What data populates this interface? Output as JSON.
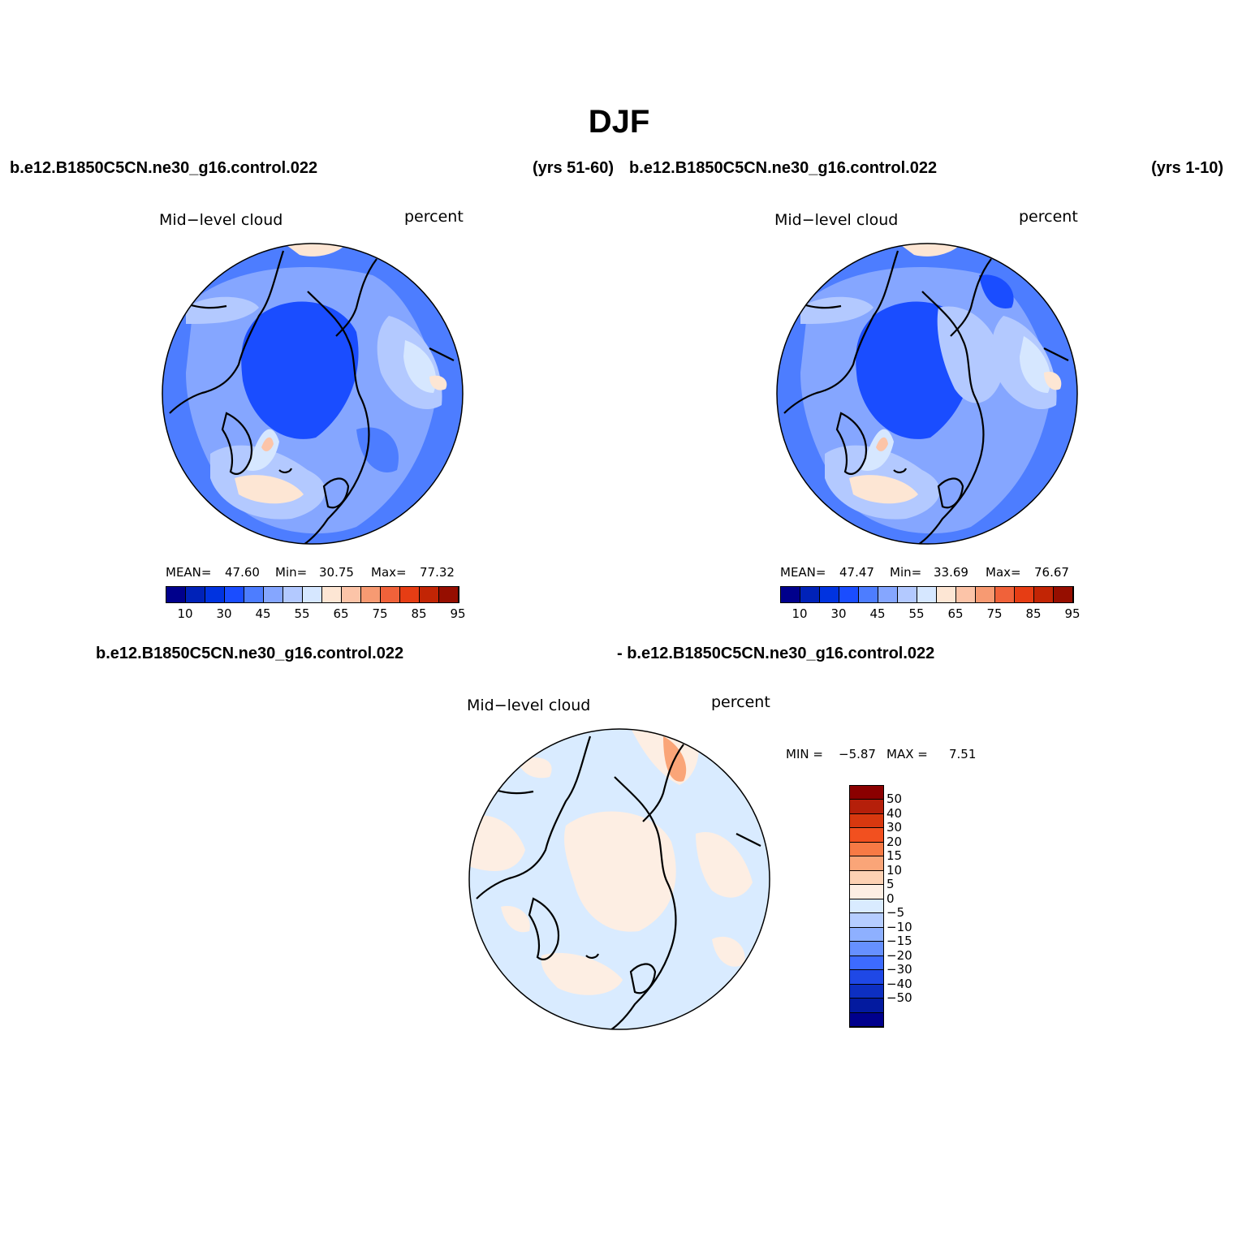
{
  "figure": {
    "title": "DJF",
    "panels": [
      {
        "case": "b.e12.B1850C5CN.ne30_g16.control.022",
        "years": "(yrs 51-60)",
        "variable": "Mid−level cloud",
        "units": "percent",
        "mean_label": "MEAN=",
        "mean": "47.60",
        "min_label": "Min=",
        "min": "30.75",
        "max_label": "Max=",
        "max": "77.32"
      },
      {
        "case": "b.e12.B1850C5CN.ne30_g16.control.022",
        "years": "(yrs 1-10)",
        "variable": "Mid−level cloud",
        "units": "percent",
        "mean_label": "MEAN=",
        "mean": "47.47",
        "min_label": "Min=",
        "min": "33.69",
        "max_label": "Max=",
        "max": "76.67"
      },
      {
        "case_left": "b.e12.B1850C5CN.ne30_g16.control.022",
        "case_right": "- b.e12.B1850C5CN.ne30_g16.control.022",
        "variable": "Mid−level cloud",
        "units": "percent",
        "min_label": "MIN =",
        "min": "−5.87",
        "max_label": "MAX =",
        "max": "7.51"
      }
    ],
    "colorbar_top": {
      "colors": [
        "#00008c",
        "#0022b8",
        "#0033e0",
        "#1a4dff",
        "#4d7dff",
        "#85a6ff",
        "#b3c9ff",
        "#d6e7ff",
        "#fde6d4",
        "#fcc4a8",
        "#f79a72",
        "#f0623a",
        "#e63d14",
        "#c22505",
        "#960e00"
      ],
      "tick_labels": [
        "10",
        "30",
        "45",
        "55",
        "65",
        "75",
        "85",
        "95"
      ]
    },
    "colorbar_diff": {
      "colors": [
        "#8b0000",
        "#b51f0a",
        "#d8380f",
        "#f2501f",
        "#f77a45",
        "#faa578",
        "#fdd1b3",
        "#fdeee3",
        "#d9ebff",
        "#b5cdff",
        "#8eb0ff",
        "#6690ff",
        "#3d6bff",
        "#1f48e6",
        "#0d2fc2",
        "#031a9f",
        "#00008c"
      ],
      "tick_labels": [
        "50",
        "40",
        "30",
        "20",
        "15",
        "10",
        "5",
        "0",
        "−5",
        "−10",
        "−15",
        "−20",
        "−30",
        "−40",
        "−50"
      ]
    }
  }
}
